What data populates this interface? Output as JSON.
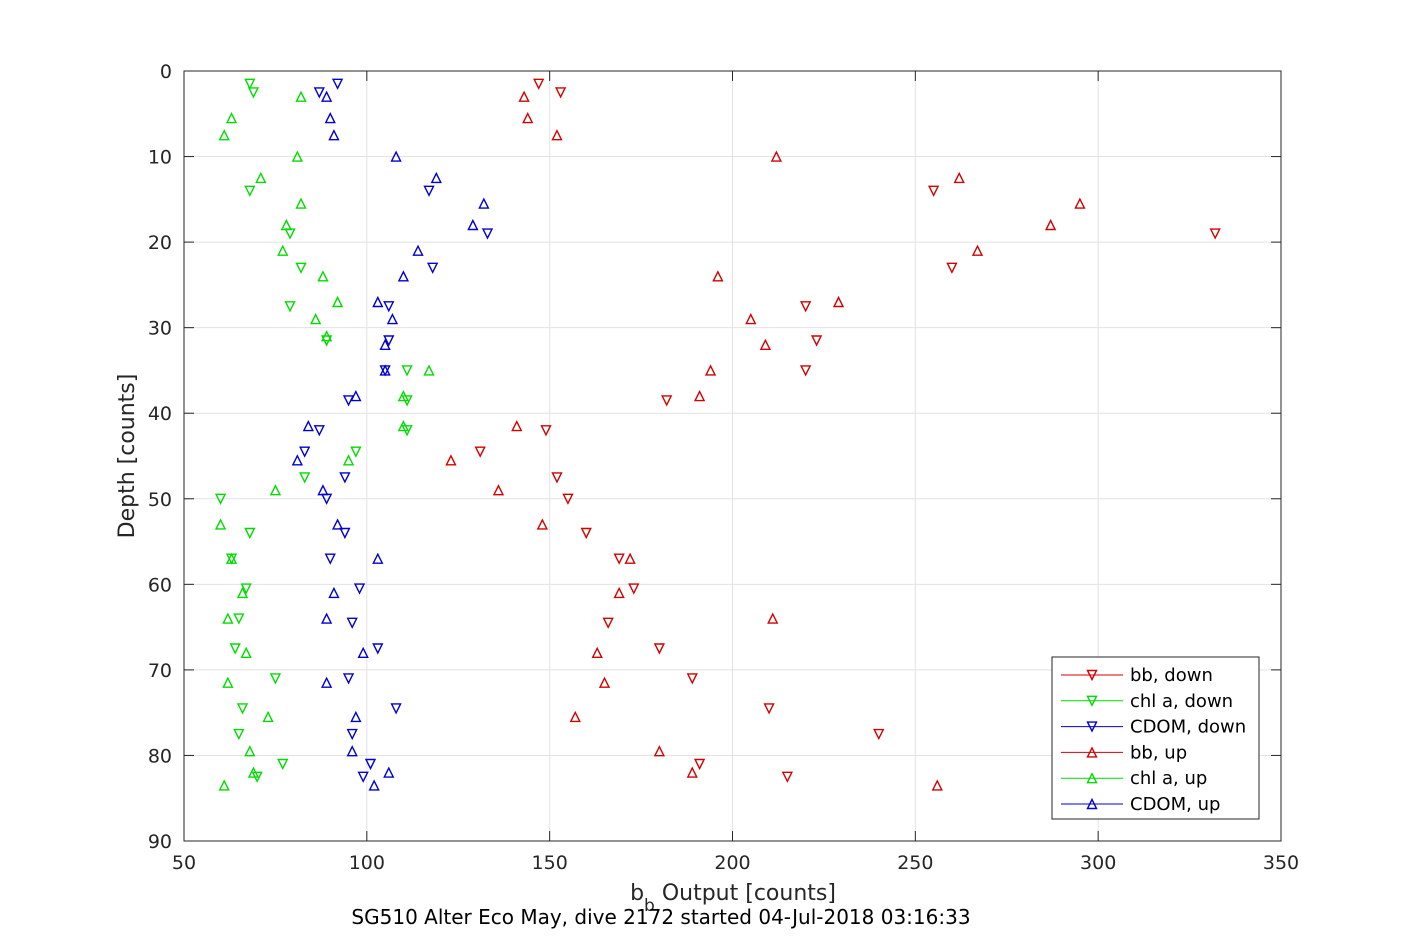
{
  "chart_data": {
    "type": "scatter",
    "xlabel_main": "b",
    "xlabel_sub": "b",
    "xlabel_rest": " Output [counts]",
    "ylabel": "Depth [counts]",
    "caption": "SG510 Alter Eco May, dive 2172 started 04-Jul-2018 03:16:33",
    "xlim": [
      50,
      350
    ],
    "ylim": [
      0,
      90
    ],
    "y_reversed": true,
    "grid": true,
    "legend_position": "bottom-right",
    "xticks": [
      50,
      100,
      150,
      200,
      250,
      300,
      350
    ],
    "yticks": [
      0,
      10,
      20,
      30,
      40,
      50,
      60,
      70,
      80,
      90
    ],
    "series": [
      {
        "name": "bb, down",
        "color": "#d40000",
        "marker": "triangle-down",
        "points": [
          [
            147,
            1.5
          ],
          [
            153,
            2.5
          ],
          [
            255,
            14
          ],
          [
            332,
            19
          ],
          [
            260,
            23
          ],
          [
            220,
            27.5
          ],
          [
            223,
            31.5
          ],
          [
            220,
            35
          ],
          [
            182,
            38.5
          ],
          [
            149,
            42
          ],
          [
            131,
            44.5
          ],
          [
            152,
            47.5
          ],
          [
            155,
            50
          ],
          [
            160,
            54
          ],
          [
            169,
            57
          ],
          [
            173,
            60.5
          ],
          [
            166,
            64.5
          ],
          [
            180,
            67.5
          ],
          [
            189,
            71
          ],
          [
            210,
            74.5
          ],
          [
            240,
            77.5
          ],
          [
            191,
            81
          ],
          [
            215,
            82.5
          ]
        ]
      },
      {
        "name": "chl a, down",
        "color": "#00dd00",
        "marker": "triangle-down",
        "points": [
          [
            68,
            1.5
          ],
          [
            69,
            2.5
          ],
          [
            68,
            14
          ],
          [
            79,
            19
          ],
          [
            82,
            23
          ],
          [
            79,
            27.5
          ],
          [
            89,
            31.5
          ],
          [
            111,
            35
          ],
          [
            111,
            38.5
          ],
          [
            111,
            42
          ],
          [
            97,
            44.5
          ],
          [
            83,
            47.5
          ],
          [
            60,
            50
          ],
          [
            68,
            54
          ],
          [
            63,
            57
          ],
          [
            67,
            60.5
          ],
          [
            65,
            64
          ],
          [
            64,
            67.5
          ],
          [
            75,
            71
          ],
          [
            66,
            74.5
          ],
          [
            65,
            77.5
          ],
          [
            77,
            81
          ],
          [
            70,
            82.5
          ]
        ]
      },
      {
        "name": "CDOM, down",
        "color": "#0000d4",
        "marker": "triangle-down",
        "points": [
          [
            92,
            1.5
          ],
          [
            87,
            2.5
          ],
          [
            117,
            14
          ],
          [
            133,
            19
          ],
          [
            118,
            23
          ],
          [
            106,
            27.5
          ],
          [
            106,
            31.5
          ],
          [
            105,
            35
          ],
          [
            95,
            38.5
          ],
          [
            87,
            42
          ],
          [
            83,
            44.5
          ],
          [
            94,
            47.5
          ],
          [
            89,
            50
          ],
          [
            94,
            54
          ],
          [
            90,
            57
          ],
          [
            98,
            60.5
          ],
          [
            96,
            64.5
          ],
          [
            103,
            67.5
          ],
          [
            95,
            71
          ],
          [
            108,
            74.5
          ],
          [
            96,
            77.5
          ],
          [
            101,
            81
          ],
          [
            99,
            82.5
          ]
        ]
      },
      {
        "name": "bb, up",
        "color": "#d40000",
        "marker": "triangle-up",
        "points": [
          [
            143,
            3
          ],
          [
            144,
            5.5
          ],
          [
            152,
            7.5
          ],
          [
            212,
            10
          ],
          [
            262,
            12.5
          ],
          [
            295,
            15.5
          ],
          [
            287,
            18
          ],
          [
            267,
            21
          ],
          [
            196,
            24
          ],
          [
            229,
            27
          ],
          [
            205,
            29
          ],
          [
            209,
            32
          ],
          [
            194,
            35
          ],
          [
            191,
            38
          ],
          [
            141,
            41.5
          ],
          [
            123,
            45.5
          ],
          [
            136,
            49
          ],
          [
            148,
            53
          ],
          [
            172,
            57
          ],
          [
            169,
            61
          ],
          [
            211,
            64
          ],
          [
            163,
            68
          ],
          [
            165,
            71.5
          ],
          [
            157,
            75.5
          ],
          [
            180,
            79.5
          ],
          [
            189,
            82
          ],
          [
            256,
            83.5
          ]
        ]
      },
      {
        "name": "chl a, up",
        "color": "#00dd00",
        "marker": "triangle-up",
        "points": [
          [
            82,
            3
          ],
          [
            63,
            5.5
          ],
          [
            61,
            7.5
          ],
          [
            81,
            10
          ],
          [
            71,
            12.5
          ],
          [
            82,
            15.5
          ],
          [
            78,
            18
          ],
          [
            77,
            21
          ],
          [
            88,
            24
          ],
          [
            92,
            27
          ],
          [
            86,
            29
          ],
          [
            89,
            31
          ],
          [
            117,
            35
          ],
          [
            110,
            38
          ],
          [
            110,
            41.5
          ],
          [
            95,
            45.5
          ],
          [
            75,
            49
          ],
          [
            60,
            53
          ],
          [
            63,
            57
          ],
          [
            66,
            61
          ],
          [
            62,
            64
          ],
          [
            67,
            68
          ],
          [
            62,
            71.5
          ],
          [
            73,
            75.5
          ],
          [
            68,
            79.5
          ],
          [
            69,
            82
          ],
          [
            61,
            83.5
          ]
        ]
      },
      {
        "name": "CDOM, up",
        "color": "#0000d4",
        "marker": "triangle-up",
        "points": [
          [
            89,
            3
          ],
          [
            90,
            5.5
          ],
          [
            91,
            7.5
          ],
          [
            108,
            10
          ],
          [
            119,
            12.5
          ],
          [
            132,
            15.5
          ],
          [
            129,
            18
          ],
          [
            114,
            21
          ],
          [
            110,
            24
          ],
          [
            103,
            27
          ],
          [
            107,
            29
          ],
          [
            105,
            32
          ],
          [
            105,
            35
          ],
          [
            97,
            38
          ],
          [
            84,
            41.5
          ],
          [
            81,
            45.5
          ],
          [
            88,
            49
          ],
          [
            92,
            53
          ],
          [
            103,
            57
          ],
          [
            91,
            61
          ],
          [
            89,
            64
          ],
          [
            99,
            68
          ],
          [
            89,
            71.5
          ],
          [
            97,
            75.5
          ],
          [
            96,
            79.5
          ],
          [
            106,
            82
          ],
          [
            102,
            83.5
          ]
        ]
      }
    ]
  }
}
